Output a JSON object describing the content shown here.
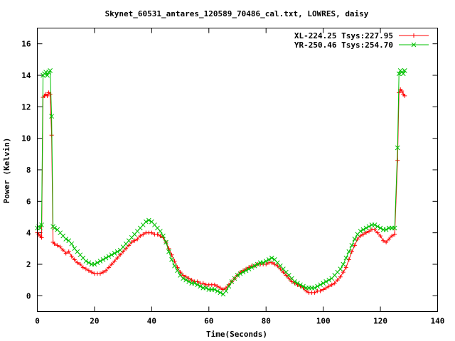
{
  "chart_data": {
    "type": "line",
    "title": "Skynet_60531_antares_120589_70486_cal.txt, LOWRES, daisy",
    "xlabel": "Time(Seconds)",
    "ylabel": "Power (Kelvin)",
    "xlim": [
      0,
      140
    ],
    "ylim": [
      -1,
      17
    ],
    "x_ticks": [
      "0",
      "20",
      "40",
      "60",
      "80",
      "100",
      "120",
      "140"
    ],
    "y_ticks": [
      "0",
      "2",
      "4",
      "6",
      "8",
      "10",
      "12",
      "14",
      "16"
    ],
    "x_tick_values": [
      0,
      20,
      40,
      60,
      80,
      100,
      120,
      140
    ],
    "y_tick_values": [
      0,
      2,
      4,
      6,
      8,
      10,
      12,
      14,
      16
    ],
    "grid": false,
    "legend_position": "top-right",
    "series": [
      {
        "name": "XL-224.25 Tsys:227.95",
        "color": "#ff0000",
        "marker": "plus",
        "points": [
          [
            0,
            4.0
          ],
          [
            0.5,
            3.9
          ],
          [
            1,
            3.8
          ],
          [
            1.5,
            3.7
          ],
          [
            2,
            12.6
          ],
          [
            2.5,
            12.7
          ],
          [
            3,
            12.8
          ],
          [
            3.5,
            12.7
          ],
          [
            4,
            12.9
          ],
          [
            4.5,
            12.8
          ],
          [
            5,
            10.2
          ],
          [
            5.5,
            3.4
          ],
          [
            6,
            3.3
          ],
          [
            7,
            3.2
          ],
          [
            8,
            3.1
          ],
          [
            9,
            2.9
          ],
          [
            10,
            2.7
          ],
          [
            11,
            2.8
          ],
          [
            12,
            2.5
          ],
          [
            13,
            2.3
          ],
          [
            14,
            2.1
          ],
          [
            15,
            2.0
          ],
          [
            16,
            1.8
          ],
          [
            17,
            1.7
          ],
          [
            18,
            1.6
          ],
          [
            19,
            1.5
          ],
          [
            20,
            1.4
          ],
          [
            21,
            1.4
          ],
          [
            22,
            1.4
          ],
          [
            23,
            1.5
          ],
          [
            24,
            1.6
          ],
          [
            25,
            1.8
          ],
          [
            26,
            2.0
          ],
          [
            27,
            2.2
          ],
          [
            28,
            2.4
          ],
          [
            29,
            2.6
          ],
          [
            30,
            2.8
          ],
          [
            31,
            3.0
          ],
          [
            32,
            3.2
          ],
          [
            33,
            3.4
          ],
          [
            34,
            3.5
          ],
          [
            35,
            3.6
          ],
          [
            36,
            3.8
          ],
          [
            37,
            3.9
          ],
          [
            38,
            4.0
          ],
          [
            39,
            4.0
          ],
          [
            40,
            4.0
          ],
          [
            41,
            3.9
          ],
          [
            42,
            3.9
          ],
          [
            43,
            3.8
          ],
          [
            44,
            3.7
          ],
          [
            45,
            3.4
          ],
          [
            46,
            3.0
          ],
          [
            47,
            2.6
          ],
          [
            48,
            2.2
          ],
          [
            49,
            1.8
          ],
          [
            50,
            1.5
          ],
          [
            51,
            1.3
          ],
          [
            52,
            1.2
          ],
          [
            53,
            1.1
          ],
          [
            54,
            1.0
          ],
          [
            55,
            0.9
          ],
          [
            56,
            0.9
          ],
          [
            57,
            0.8
          ],
          [
            58,
            0.8
          ],
          [
            59,
            0.7
          ],
          [
            60,
            0.7
          ],
          [
            61,
            0.7
          ],
          [
            62,
            0.7
          ],
          [
            63,
            0.6
          ],
          [
            64,
            0.5
          ],
          [
            65,
            0.4
          ],
          [
            66,
            0.5
          ],
          [
            67,
            0.7
          ],
          [
            68,
            0.9
          ],
          [
            69,
            1.1
          ],
          [
            70,
            1.3
          ],
          [
            71,
            1.5
          ],
          [
            72,
            1.6
          ],
          [
            73,
            1.7
          ],
          [
            74,
            1.8
          ],
          [
            75,
            1.9
          ],
          [
            76,
            1.9
          ],
          [
            77,
            2.0
          ],
          [
            78,
            2.0
          ],
          [
            79,
            2.0
          ],
          [
            80,
            2.0
          ],
          [
            81,
            2.1
          ],
          [
            82,
            2.1
          ],
          [
            83,
            2.0
          ],
          [
            84,
            1.9
          ],
          [
            85,
            1.7
          ],
          [
            86,
            1.5
          ],
          [
            87,
            1.3
          ],
          [
            88,
            1.1
          ],
          [
            89,
            0.9
          ],
          [
            90,
            0.8
          ],
          [
            91,
            0.7
          ],
          [
            92,
            0.6
          ],
          [
            93,
            0.5
          ],
          [
            94,
            0.3
          ],
          [
            95,
            0.2
          ],
          [
            96,
            0.2
          ],
          [
            97,
            0.2
          ],
          [
            98,
            0.3
          ],
          [
            99,
            0.3
          ],
          [
            100,
            0.4
          ],
          [
            101,
            0.5
          ],
          [
            102,
            0.6
          ],
          [
            103,
            0.7
          ],
          [
            104,
            0.8
          ],
          [
            105,
            1.0
          ],
          [
            106,
            1.2
          ],
          [
            107,
            1.5
          ],
          [
            108,
            1.8
          ],
          [
            109,
            2.3
          ],
          [
            110,
            2.8
          ],
          [
            111,
            3.2
          ],
          [
            112,
            3.6
          ],
          [
            113,
            3.8
          ],
          [
            114,
            3.9
          ],
          [
            115,
            4.0
          ],
          [
            116,
            4.1
          ],
          [
            117,
            4.2
          ],
          [
            118,
            4.2
          ],
          [
            119,
            4.0
          ],
          [
            120,
            3.8
          ],
          [
            121,
            3.5
          ],
          [
            122,
            3.4
          ],
          [
            123,
            3.6
          ],
          [
            124,
            3.8
          ],
          [
            125,
            3.9
          ],
          [
            126,
            8.6
          ],
          [
            126.5,
            12.9
          ],
          [
            127,
            13.1
          ],
          [
            127.5,
            13.0
          ],
          [
            128,
            12.8
          ],
          [
            128.5,
            12.7
          ]
        ]
      },
      {
        "name": "YR-250.46 Tsys:254.70",
        "color": "#00c000",
        "marker": "cross",
        "points": [
          [
            0,
            4.3
          ],
          [
            0.5,
            4.4
          ],
          [
            1,
            4.3
          ],
          [
            1.5,
            4.5
          ],
          [
            2,
            14.0
          ],
          [
            2.5,
            14.1
          ],
          [
            3,
            14.2
          ],
          [
            3.5,
            14.0
          ],
          [
            4,
            14.2
          ],
          [
            4.5,
            14.3
          ],
          [
            5,
            11.4
          ],
          [
            5.5,
            4.4
          ],
          [
            6,
            4.3
          ],
          [
            7,
            4.2
          ],
          [
            8,
            4.0
          ],
          [
            9,
            3.8
          ],
          [
            10,
            3.6
          ],
          [
            11,
            3.5
          ],
          [
            12,
            3.3
          ],
          [
            13,
            3.0
          ],
          [
            14,
            2.8
          ],
          [
            15,
            2.6
          ],
          [
            16,
            2.4
          ],
          [
            17,
            2.2
          ],
          [
            18,
            2.1
          ],
          [
            19,
            2.0
          ],
          [
            20,
            2.0
          ],
          [
            21,
            2.1
          ],
          [
            22,
            2.2
          ],
          [
            23,
            2.3
          ],
          [
            24,
            2.4
          ],
          [
            25,
            2.5
          ],
          [
            26,
            2.6
          ],
          [
            27,
            2.7
          ],
          [
            28,
            2.8
          ],
          [
            29,
            2.9
          ],
          [
            30,
            3.1
          ],
          [
            31,
            3.3
          ],
          [
            32,
            3.5
          ],
          [
            33,
            3.7
          ],
          [
            34,
            3.9
          ],
          [
            35,
            4.1
          ],
          [
            36,
            4.3
          ],
          [
            37,
            4.5
          ],
          [
            38,
            4.7
          ],
          [
            39,
            4.8
          ],
          [
            40,
            4.7
          ],
          [
            41,
            4.5
          ],
          [
            42,
            4.3
          ],
          [
            43,
            4.1
          ],
          [
            44,
            3.8
          ],
          [
            45,
            3.4
          ],
          [
            46,
            2.8
          ],
          [
            47,
            2.3
          ],
          [
            48,
            1.9
          ],
          [
            49,
            1.6
          ],
          [
            50,
            1.3
          ],
          [
            51,
            1.1
          ],
          [
            52,
            1.0
          ],
          [
            53,
            0.9
          ],
          [
            54,
            0.8
          ],
          [
            55,
            0.8
          ],
          [
            56,
            0.7
          ],
          [
            57,
            0.6
          ],
          [
            58,
            0.5
          ],
          [
            59,
            0.5
          ],
          [
            60,
            0.4
          ],
          [
            61,
            0.4
          ],
          [
            62,
            0.4
          ],
          [
            63,
            0.3
          ],
          [
            64,
            0.2
          ],
          [
            65,
            0.1
          ],
          [
            66,
            0.3
          ],
          [
            67,
            0.6
          ],
          [
            68,
            0.9
          ],
          [
            69,
            1.1
          ],
          [
            70,
            1.3
          ],
          [
            71,
            1.4
          ],
          [
            72,
            1.5
          ],
          [
            73,
            1.6
          ],
          [
            74,
            1.7
          ],
          [
            75,
            1.8
          ],
          [
            76,
            1.9
          ],
          [
            77,
            2.0
          ],
          [
            78,
            2.1
          ],
          [
            79,
            2.1
          ],
          [
            80,
            2.2
          ],
          [
            81,
            2.3
          ],
          [
            82,
            2.4
          ],
          [
            83,
            2.3
          ],
          [
            84,
            2.1
          ],
          [
            85,
            1.9
          ],
          [
            86,
            1.7
          ],
          [
            87,
            1.5
          ],
          [
            88,
            1.3
          ],
          [
            89,
            1.1
          ],
          [
            90,
            0.9
          ],
          [
            91,
            0.8
          ],
          [
            92,
            0.7
          ],
          [
            93,
            0.6
          ],
          [
            94,
            0.5
          ],
          [
            95,
            0.5
          ],
          [
            96,
            0.5
          ],
          [
            97,
            0.5
          ],
          [
            98,
            0.6
          ],
          [
            99,
            0.7
          ],
          [
            100,
            0.8
          ],
          [
            101,
            0.9
          ],
          [
            102,
            1.0
          ],
          [
            103,
            1.1
          ],
          [
            104,
            1.3
          ],
          [
            105,
            1.5
          ],
          [
            106,
            1.7
          ],
          [
            107,
            2.0
          ],
          [
            108,
            2.4
          ],
          [
            109,
            2.8
          ],
          [
            110,
            3.2
          ],
          [
            111,
            3.6
          ],
          [
            112,
            3.9
          ],
          [
            113,
            4.1
          ],
          [
            114,
            4.2
          ],
          [
            115,
            4.3
          ],
          [
            116,
            4.4
          ],
          [
            117,
            4.5
          ],
          [
            118,
            4.5
          ],
          [
            119,
            4.4
          ],
          [
            120,
            4.3
          ],
          [
            121,
            4.2
          ],
          [
            122,
            4.2
          ],
          [
            123,
            4.3
          ],
          [
            124,
            4.3
          ],
          [
            125,
            4.3
          ],
          [
            126,
            9.4
          ],
          [
            126.5,
            14.1
          ],
          [
            127,
            14.3
          ],
          [
            127.5,
            14.2
          ],
          [
            128,
            14.1
          ],
          [
            128.5,
            14.3
          ]
        ]
      }
    ]
  }
}
